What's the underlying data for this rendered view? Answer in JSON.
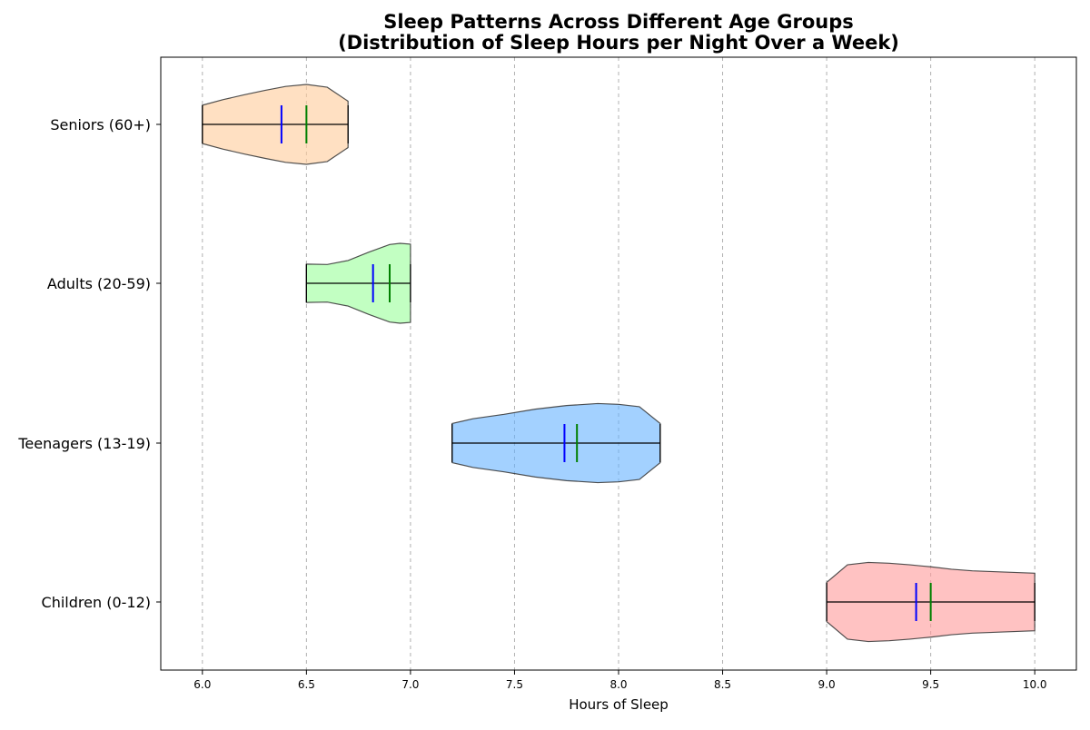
{
  "chart_data": {
    "type": "violin",
    "orientation": "horizontal",
    "title": "Sleep Patterns Across Different Age Groups",
    "subtitle": "(Distribution of Sleep Hours per Night Over a Week)",
    "xlabel": "Hours of Sleep",
    "ylabel": "",
    "xlim": [
      5.8,
      10.2
    ],
    "xticks": [
      6.0,
      6.5,
      7.0,
      7.5,
      8.0,
      8.5,
      9.0,
      9.5,
      10.0
    ],
    "xtick_labels": [
      "6.0",
      "6.5",
      "7.0",
      "7.5",
      "8.0",
      "8.5",
      "9.0",
      "9.5",
      "10.0"
    ],
    "grid": {
      "x": true,
      "y": false,
      "style": "dashed"
    },
    "categories": [
      "Children (0-12)",
      "Teenagers (13-19)",
      "Adults (20-59)",
      "Seniors (60+)"
    ],
    "series": [
      {
        "category": "Children (0-12)",
        "color": "#ff9999",
        "min": 9.0,
        "max": 10.0,
        "mean": 9.43,
        "median": 9.5,
        "density_profile": [
          [
            9.0,
            0.49
          ],
          [
            9.1,
            0.93
          ],
          [
            9.2,
            0.99
          ],
          [
            9.3,
            0.97
          ],
          [
            9.4,
            0.93
          ],
          [
            9.5,
            0.88
          ],
          [
            9.6,
            0.82
          ],
          [
            9.7,
            0.78
          ],
          [
            9.8,
            0.76
          ],
          [
            9.9,
            0.74
          ],
          [
            10.0,
            0.72
          ]
        ]
      },
      {
        "category": "Teenagers (13-19)",
        "color": "#66b3ff",
        "min": 7.2,
        "max": 8.2,
        "mean": 7.74,
        "median": 7.8,
        "density_profile": [
          [
            7.2,
            0.49
          ],
          [
            7.3,
            0.61
          ],
          [
            7.45,
            0.72
          ],
          [
            7.6,
            0.85
          ],
          [
            7.75,
            0.94
          ],
          [
            7.9,
            0.99
          ],
          [
            8.0,
            0.97
          ],
          [
            8.1,
            0.91
          ],
          [
            8.2,
            0.49
          ]
        ]
      },
      {
        "category": "Adults (20-59)",
        "color": "#99ff99",
        "min": 6.5,
        "max": 7.0,
        "mean": 6.82,
        "median": 6.9,
        "density_profile": [
          [
            6.5,
            0.48
          ],
          [
            6.6,
            0.47
          ],
          [
            6.7,
            0.57
          ],
          [
            6.8,
            0.78
          ],
          [
            6.9,
            0.97
          ],
          [
            6.95,
            1.0
          ],
          [
            7.0,
            0.98
          ]
        ]
      },
      {
        "category": "Seniors (60+)",
        "color": "#ffcc99",
        "min": 6.0,
        "max": 6.7,
        "mean": 6.38,
        "median": 6.5,
        "density_profile": [
          [
            6.0,
            0.48
          ],
          [
            6.1,
            0.62
          ],
          [
            6.2,
            0.74
          ],
          [
            6.3,
            0.85
          ],
          [
            6.4,
            0.95
          ],
          [
            6.5,
            1.0
          ],
          [
            6.6,
            0.93
          ],
          [
            6.7,
            0.58
          ]
        ]
      }
    ],
    "mean_color": "#0000ff",
    "median_color": "#008000",
    "range_line_color": "#000000"
  }
}
